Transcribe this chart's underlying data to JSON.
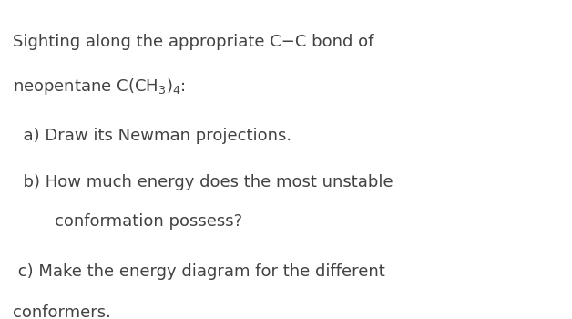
{
  "background_color": "#ffffff",
  "figsize": [
    6.28,
    3.5
  ],
  "dpi": 100,
  "line1": "Sighting along the appropriate C−C bond of",
  "line2": "neopentane C(CH$_3$)$_4$:",
  "item_a": "  a) Draw its Newman projections.",
  "item_b_line1": "  b) How much energy does the most unstable",
  "item_b_line2": "        conformation possess?",
  "item_c_line1": " c) Make the energy diagram for the different",
  "item_c_line2": "conformers.",
  "font_color": "#424242",
  "font_size": 13.0,
  "font_family": "DejaVu Sans"
}
